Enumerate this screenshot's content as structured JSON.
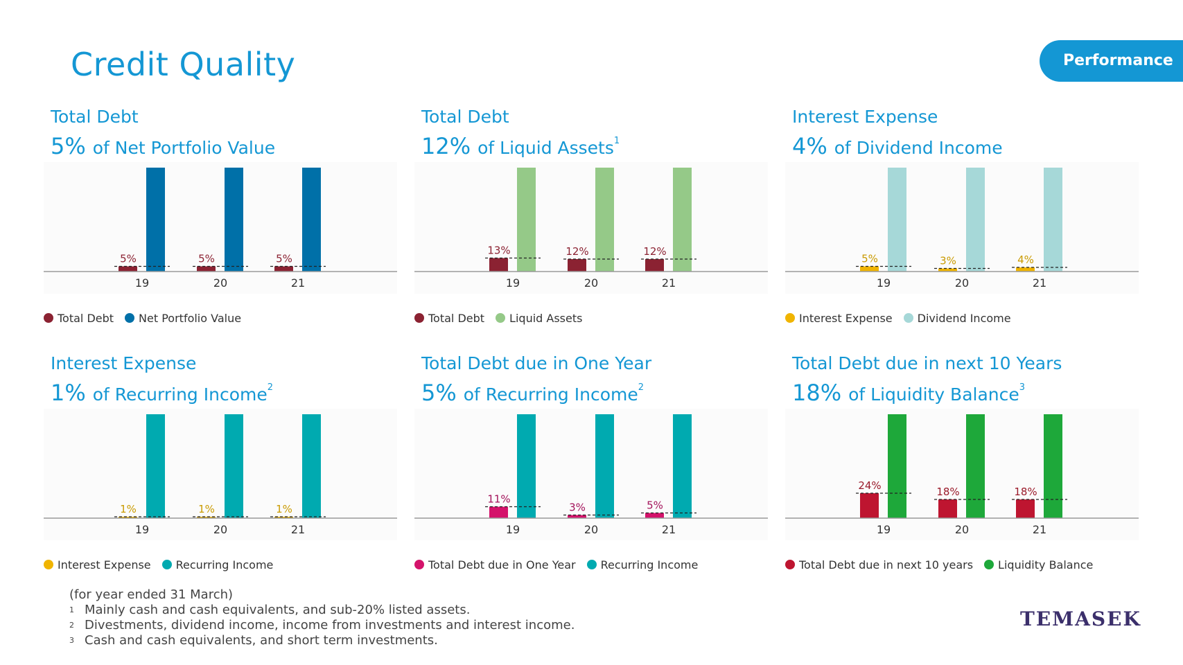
{
  "page": {
    "title": "Credit Quality",
    "tab_label": "Performance",
    "brand": "TEMASEK"
  },
  "footnotes": {
    "intro": "(for year ended 31 March)",
    "notes": [
      {
        "mark": "1",
        "text": "Mainly cash and cash equivalents, and sub-20% listed assets."
      },
      {
        "mark": "2",
        "text": "Divestments, dividend income, income from investments and interest income."
      },
      {
        "mark": "3",
        "text": "Cash and cash equivalents, and short term investments."
      }
    ]
  },
  "chart_data": [
    {
      "type": "bar",
      "title": "Total Debt",
      "pct": "5%",
      "subtitle": "of Net Portfolio Value",
      "sup": "",
      "categories": [
        "19",
        "20",
        "21"
      ],
      "data_labels": [
        "5%",
        "5%",
        "5%"
      ],
      "values": [
        5,
        5,
        5
      ],
      "series": [
        {
          "name": "Total Debt",
          "color": "#8b2232",
          "values": [
            5,
            5,
            5
          ]
        },
        {
          "name": "Net Portfolio Value",
          "color": "#0070a8",
          "values": [
            100,
            100,
            100
          ]
        }
      ],
      "label_color": "#8b2232",
      "ylim": [
        0,
        100
      ]
    },
    {
      "type": "bar",
      "title": "Total Debt",
      "pct": "12%",
      "subtitle": "of Liquid Assets",
      "sup": "1",
      "categories": [
        "19",
        "20",
        "21"
      ],
      "data_labels": [
        "13%",
        "12%",
        "12%"
      ],
      "values": [
        13,
        12,
        12
      ],
      "series": [
        {
          "name": "Total Debt",
          "color": "#8b2232",
          "values": [
            13,
            12,
            12
          ]
        },
        {
          "name": "Liquid Assets",
          "color": "#95c988",
          "values": [
            100,
            100,
            100
          ]
        }
      ],
      "label_color": "#8b2232",
      "ylim": [
        0,
        100
      ]
    },
    {
      "type": "bar",
      "title": "Interest Expense",
      "pct": "4%",
      "subtitle": "of Dividend Income",
      "sup": "",
      "categories": [
        "19",
        "20",
        "21"
      ],
      "data_labels": [
        "5%",
        "3%",
        "4%"
      ],
      "values": [
        5,
        3,
        4
      ],
      "series": [
        {
          "name": "Interest Expense",
          "color": "#f0b400",
          "values": [
            5,
            3,
            4
          ]
        },
        {
          "name": "Dividend Income",
          "color": "#a6d8d8",
          "values": [
            100,
            100,
            100
          ]
        }
      ],
      "label_color": "#c99a00",
      "ylim": [
        0,
        100
      ]
    },
    {
      "type": "bar",
      "title": "Interest Expense",
      "pct": "1%",
      "subtitle": "of Recurring Income",
      "sup": "2",
      "categories": [
        "19",
        "20",
        "21"
      ],
      "data_labels": [
        "1%",
        "1%",
        "1%"
      ],
      "values": [
        1,
        1,
        1
      ],
      "series": [
        {
          "name": "Interest Expense",
          "color": "#f0b400",
          "values": [
            1,
            1,
            1
          ]
        },
        {
          "name": "Recurring Income",
          "color": "#00aab0",
          "values": [
            100,
            100,
            100
          ]
        }
      ],
      "label_color": "#c99a00",
      "ylim": [
        0,
        100
      ]
    },
    {
      "type": "bar",
      "title": "Total Debt due in One Year",
      "pct": "5%",
      "subtitle": "of Recurring Income",
      "sup": "2",
      "categories": [
        "19",
        "20",
        "21"
      ],
      "data_labels": [
        "11%",
        "3%",
        "5%"
      ],
      "values": [
        11,
        3,
        5
      ],
      "series": [
        {
          "name": "Total Debt due in One Year",
          "color": "#d4136b",
          "values": [
            11,
            3,
            5
          ]
        },
        {
          "name": "Recurring Income",
          "color": "#00aab0",
          "values": [
            100,
            100,
            100
          ]
        }
      ],
      "label_color": "#a3125a",
      "ylim": [
        0,
        100
      ]
    },
    {
      "type": "bar",
      "title": "Total Debt due in next 10 Years",
      "pct": "18%",
      "subtitle": "of Liquidity Balance",
      "sup": "3",
      "categories": [
        "19",
        "20",
        "21"
      ],
      "data_labels": [
        "24%",
        "18%",
        "18%"
      ],
      "values": [
        24,
        18,
        18
      ],
      "series": [
        {
          "name": "Total Debt due in next 10 years",
          "color": "#be1530",
          "values": [
            24,
            18,
            18
          ]
        },
        {
          "name": "Liquidity Balance",
          "color": "#1ea83a",
          "values": [
            100,
            100,
            100
          ]
        }
      ],
      "label_color": "#9a1a2a",
      "ylim": [
        0,
        100
      ]
    }
  ]
}
